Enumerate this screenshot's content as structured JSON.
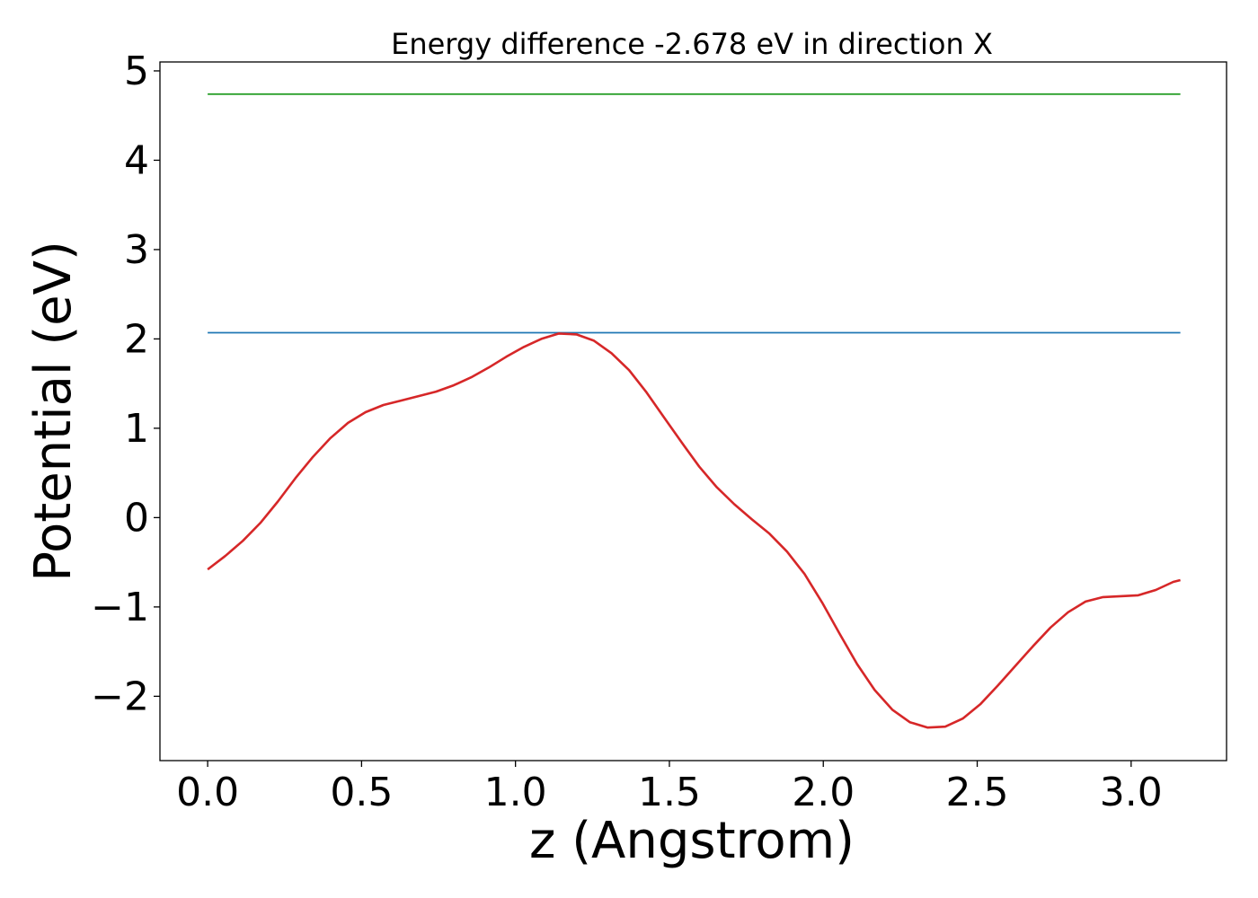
{
  "chart_data": {
    "type": "line",
    "title": "Energy difference -2.678 eV in direction X",
    "xlabel": "z (Angstrom)",
    "ylabel": "Potential (eV)",
    "xlim": [
      -0.155,
      3.31
    ],
    "ylim": [
      -2.72,
      5.1
    ],
    "xticks": [
      0.0,
      0.5,
      1.0,
      1.5,
      2.0,
      2.5,
      3.0
    ],
    "xtick_labels": [
      "0.0",
      "0.5",
      "1.0",
      "1.5",
      "2.0",
      "2.5",
      "3.0"
    ],
    "yticks": [
      -2,
      -1,
      0,
      1,
      2,
      3,
      4,
      5
    ],
    "ytick_labels": [
      "−2",
      "−1",
      "0",
      "1",
      "2",
      "3",
      "4",
      "5"
    ],
    "grid": false,
    "series": [
      {
        "color": "#d62728",
        "x": [
          0.0,
          0.057,
          0.114,
          0.171,
          0.228,
          0.285,
          0.342,
          0.399,
          0.456,
          0.513,
          0.571,
          0.628,
          0.685,
          0.742,
          0.799,
          0.856,
          0.913,
          0.97,
          1.027,
          1.084,
          1.141,
          1.198,
          1.255,
          1.312,
          1.369,
          1.426,
          1.483,
          1.54,
          1.597,
          1.654,
          1.711,
          1.768,
          1.825,
          1.882,
          1.939,
          1.996,
          2.053,
          2.11,
          2.167,
          2.224,
          2.281,
          2.339,
          2.396,
          2.453,
          2.51,
          2.567,
          2.624,
          2.681,
          2.738,
          2.795,
          2.852,
          2.909,
          2.966,
          3.023,
          3.08,
          3.137,
          3.16
        ],
        "y": [
          -0.58,
          -0.43,
          -0.26,
          -0.06,
          0.18,
          0.44,
          0.68,
          0.89,
          1.06,
          1.18,
          1.26,
          1.31,
          1.36,
          1.41,
          1.48,
          1.57,
          1.68,
          1.8,
          1.91,
          2.0,
          2.06,
          2.05,
          1.98,
          1.84,
          1.65,
          1.4,
          1.12,
          0.84,
          0.57,
          0.34,
          0.15,
          -0.02,
          -0.18,
          -0.38,
          -0.63,
          -0.95,
          -1.3,
          -1.64,
          -1.93,
          -2.15,
          -2.29,
          -2.35,
          -2.34,
          -2.25,
          -2.09,
          -1.88,
          -1.66,
          -1.44,
          -1.23,
          -1.06,
          -0.94,
          -0.89,
          -0.88,
          -0.87,
          -0.81,
          -0.72,
          -0.7
        ]
      },
      {
        "color": "#1f77b4",
        "x": [
          0.0,
          3.16
        ],
        "y": [
          2.07,
          2.07
        ]
      },
      {
        "color": "#2ca02c",
        "x": [
          0.0,
          3.16
        ],
        "y": [
          4.74,
          4.74
        ]
      }
    ]
  }
}
